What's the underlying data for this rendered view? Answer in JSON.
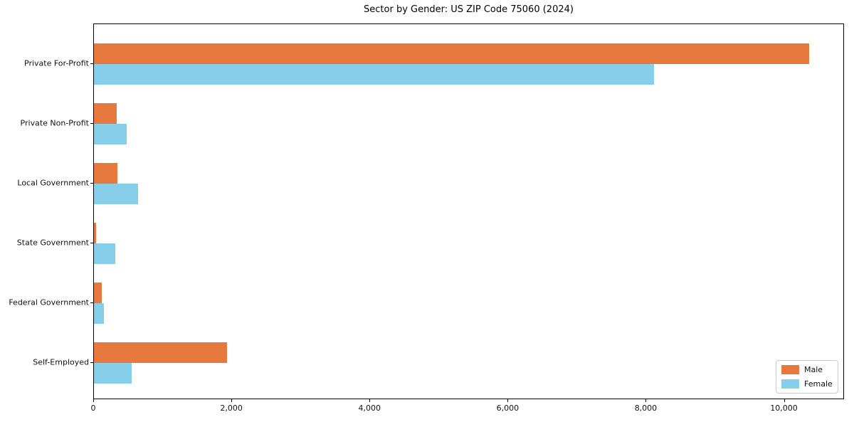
{
  "chart_data": {
    "type": "bar",
    "orientation": "horizontal",
    "title": "Sector by Gender: US ZIP Code 75060 (2024)",
    "categories": [
      "Private For-Profit",
      "Private Non-Profit",
      "Local Government",
      "State Government",
      "Federal Government",
      "Self-Employed"
    ],
    "series": [
      {
        "name": "Male",
        "color": "#e8793e",
        "values": [
          10350,
          330,
          340,
          30,
          110,
          1930
        ]
      },
      {
        "name": "Female",
        "color": "#87ceeb",
        "values": [
          8110,
          475,
          635,
          310,
          145,
          550
        ]
      }
    ],
    "xlabel": "",
    "ylabel": "",
    "xlim": [
      0,
      10870
    ],
    "xticks": [
      0,
      2000,
      4000,
      6000,
      8000,
      10000
    ],
    "xtick_labels": [
      "0",
      "2,000",
      "4,000",
      "6,000",
      "8,000",
      "10,000"
    ],
    "grid": false,
    "legend_position": "lower right",
    "colors": {
      "axis": "#000000",
      "background": "#ffffff",
      "legend_border": "#cccccc"
    }
  }
}
